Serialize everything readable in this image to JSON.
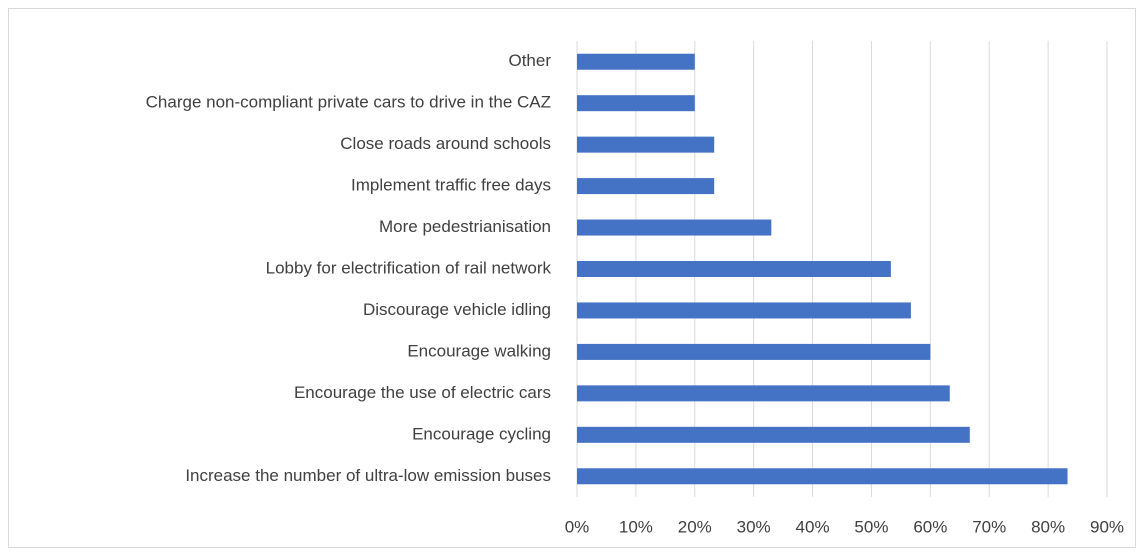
{
  "chart_data": {
    "type": "barh",
    "categories": [
      "Other",
      "Charge non-compliant private cars to drive in the CAZ",
      "Close roads around schools",
      "Implement traffic free days",
      "More pedestrianisation",
      "Lobby for electrification of rail network",
      "Discourage vehicle idling",
      "Encourage walking",
      "Encourage the use of electric cars",
      "Encourage cycling",
      "Increase the number of ultra-low emission buses"
    ],
    "values": [
      20,
      20,
      23.3,
      23.3,
      33,
      53.3,
      56.7,
      60,
      63.3,
      66.7,
      83.3
    ],
    "color": "#4472c4",
    "xlim": [
      0,
      90
    ],
    "xticks": [
      {
        "value": 0,
        "label": "0%"
      },
      {
        "value": 10,
        "label": "10%"
      },
      {
        "value": 20,
        "label": "20%"
      },
      {
        "value": 30,
        "label": "30%"
      },
      {
        "value": 40,
        "label": "40%"
      },
      {
        "value": 50,
        "label": "50%"
      },
      {
        "value": 60,
        "label": "60%"
      },
      {
        "value": 70,
        "label": "70%"
      },
      {
        "value": 80,
        "label": "80%"
      },
      {
        "value": 90,
        "label": "90%"
      }
    ],
    "grid": true
  }
}
